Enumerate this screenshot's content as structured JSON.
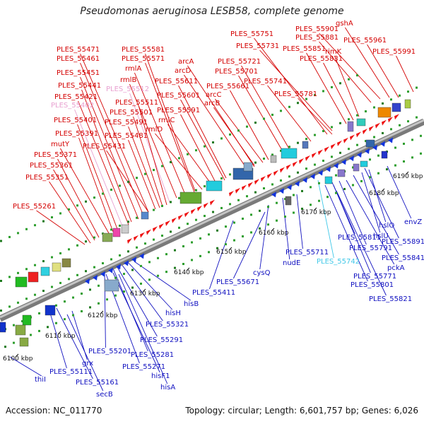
{
  "title": "Pseudomonas aeruginosa LESB58, complete genome",
  "footer": {
    "accession": "Accession: NC_011770",
    "topology": "Topology: circular; Length: 6,601,757 bp; Genes: 6,026"
  },
  "colors": {
    "forward_label": "#d40000",
    "reverse_label": "#1010c0",
    "faded_forward": "#e8a0d0",
    "faded_reverse": "#40c8e8",
    "backbone": "#a8a8a8"
  },
  "kbp_ticks": [
    "6100 kbp",
    "6110 kbp",
    "6120 kbp",
    "6130 kbp",
    "6140 kbp",
    "6150 kbp",
    "6160 kbp",
    "6170 kbp",
    "6180 kbp",
    "6190 kbp"
  ],
  "forward_labels": [
    {
      "text": "gshA",
      "style": "normal"
    },
    {
      "text": "PLES_55901",
      "style": "normal"
    },
    {
      "text": "PLES_55881",
      "style": "normal"
    },
    {
      "text": "PLES_55961",
      "style": "normal"
    },
    {
      "text": "PLES_55751",
      "style": "normal"
    },
    {
      "text": "PLES_55991",
      "style": "normal"
    },
    {
      "text": "PLES_55731",
      "style": "normal"
    },
    {
      "text": "PLES_55851",
      "style": "normal"
    },
    {
      "text": "rimK",
      "style": "normal"
    },
    {
      "text": "PLES_55471",
      "style": "normal"
    },
    {
      "text": "PLES_55581",
      "style": "normal"
    },
    {
      "text": "PLES_55831",
      "style": "normal"
    },
    {
      "text": "PLES_55461",
      "style": "normal"
    },
    {
      "text": "PLES_55571",
      "style": "normal"
    },
    {
      "text": "arcA",
      "style": "normal"
    },
    {
      "text": "PLES_55721",
      "style": "normal"
    },
    {
      "text": "rmlA",
      "style": "normal"
    },
    {
      "text": "arcD",
      "style": "normal"
    },
    {
      "text": "PLES_55701",
      "style": "normal"
    },
    {
      "text": "PLES_55451",
      "style": "normal"
    },
    {
      "text": "rmlB",
      "style": "normal"
    },
    {
      "text": "PLES_55611",
      "style": "normal"
    },
    {
      "text": "PLES_55741",
      "style": "normal"
    },
    {
      "text": "PLES_55441",
      "style": "normal"
    },
    {
      "text": "PLES_55512",
      "style": "faded"
    },
    {
      "text": "PLES_55661",
      "style": "normal"
    },
    {
      "text": "PLES_55781",
      "style": "normal"
    },
    {
      "text": "PLES_55421",
      "style": "normal"
    },
    {
      "text": "PLES_55601",
      "style": "normal"
    },
    {
      "text": "arcC",
      "style": "normal"
    },
    {
      "text": "PLES_55511",
      "style": "normal"
    },
    {
      "text": "arcB",
      "style": "normal"
    },
    {
      "text": "PLES_55402",
      "style": "faded"
    },
    {
      "text": "PLES_55501",
      "style": "normal"
    },
    {
      "text": "PLES_55591",
      "style": "normal"
    },
    {
      "text": "rmlC",
      "style": "normal"
    },
    {
      "text": "PLES_55491",
      "style": "normal"
    },
    {
      "text": "PLES_55401",
      "style": "normal"
    },
    {
      "text": "rmlD",
      "style": "normal"
    },
    {
      "text": "PLES_55391",
      "style": "normal"
    },
    {
      "text": "PLES_55481",
      "style": "normal"
    },
    {
      "text": "mutY",
      "style": "normal"
    },
    {
      "text": "PLES_55431",
      "style": "normal"
    },
    {
      "text": "PLES_55371",
      "style": "normal"
    },
    {
      "text": "PLES_55361",
      "style": "normal"
    },
    {
      "text": "PLES_55351",
      "style": "normal"
    },
    {
      "text": "PLES_55261",
      "style": "normal"
    }
  ],
  "reverse_labels": [
    {
      "text": "envZ",
      "style": "normal"
    },
    {
      "text": "hslO",
      "style": "normal"
    },
    {
      "text": "hslU",
      "style": "normal"
    },
    {
      "text": "PLES_55891",
      "style": "normal"
    },
    {
      "text": "PLES_55811",
      "style": "normal"
    },
    {
      "text": "PLES_55791",
      "style": "normal"
    },
    {
      "text": "PLES_55841",
      "style": "normal"
    },
    {
      "text": "PLES_55711",
      "style": "normal"
    },
    {
      "text": "PLES_55742",
      "style": "faded"
    },
    {
      "text": "pckA",
      "style": "normal"
    },
    {
      "text": "nudE",
      "style": "normal"
    },
    {
      "text": "cysQ",
      "style": "normal"
    },
    {
      "text": "PLES_55771",
      "style": "normal"
    },
    {
      "text": "PLES_55801",
      "style": "normal"
    },
    {
      "text": "PLES_55671",
      "style": "normal"
    },
    {
      "text": "PLES_55821",
      "style": "normal"
    },
    {
      "text": "PLES_55411",
      "style": "normal"
    },
    {
      "text": "hisB",
      "style": "normal"
    },
    {
      "text": "hisH",
      "style": "normal"
    },
    {
      "text": "PLES_55321",
      "style": "normal"
    },
    {
      "text": "PLES_55291",
      "style": "normal"
    },
    {
      "text": "PLES_55201",
      "style": "normal"
    },
    {
      "text": "PLES_55281",
      "style": "normal"
    },
    {
      "text": "grx",
      "style": "normal"
    },
    {
      "text": "PLES_55271",
      "style": "normal"
    },
    {
      "text": "hisF1",
      "style": "normal"
    },
    {
      "text": "PLES_55111",
      "style": "normal"
    },
    {
      "text": "PLES_55161",
      "style": "normal"
    },
    {
      "text": "thiI",
      "style": "normal"
    },
    {
      "text": "hisA",
      "style": "normal"
    },
    {
      "text": "secB",
      "style": "normal"
    }
  ]
}
